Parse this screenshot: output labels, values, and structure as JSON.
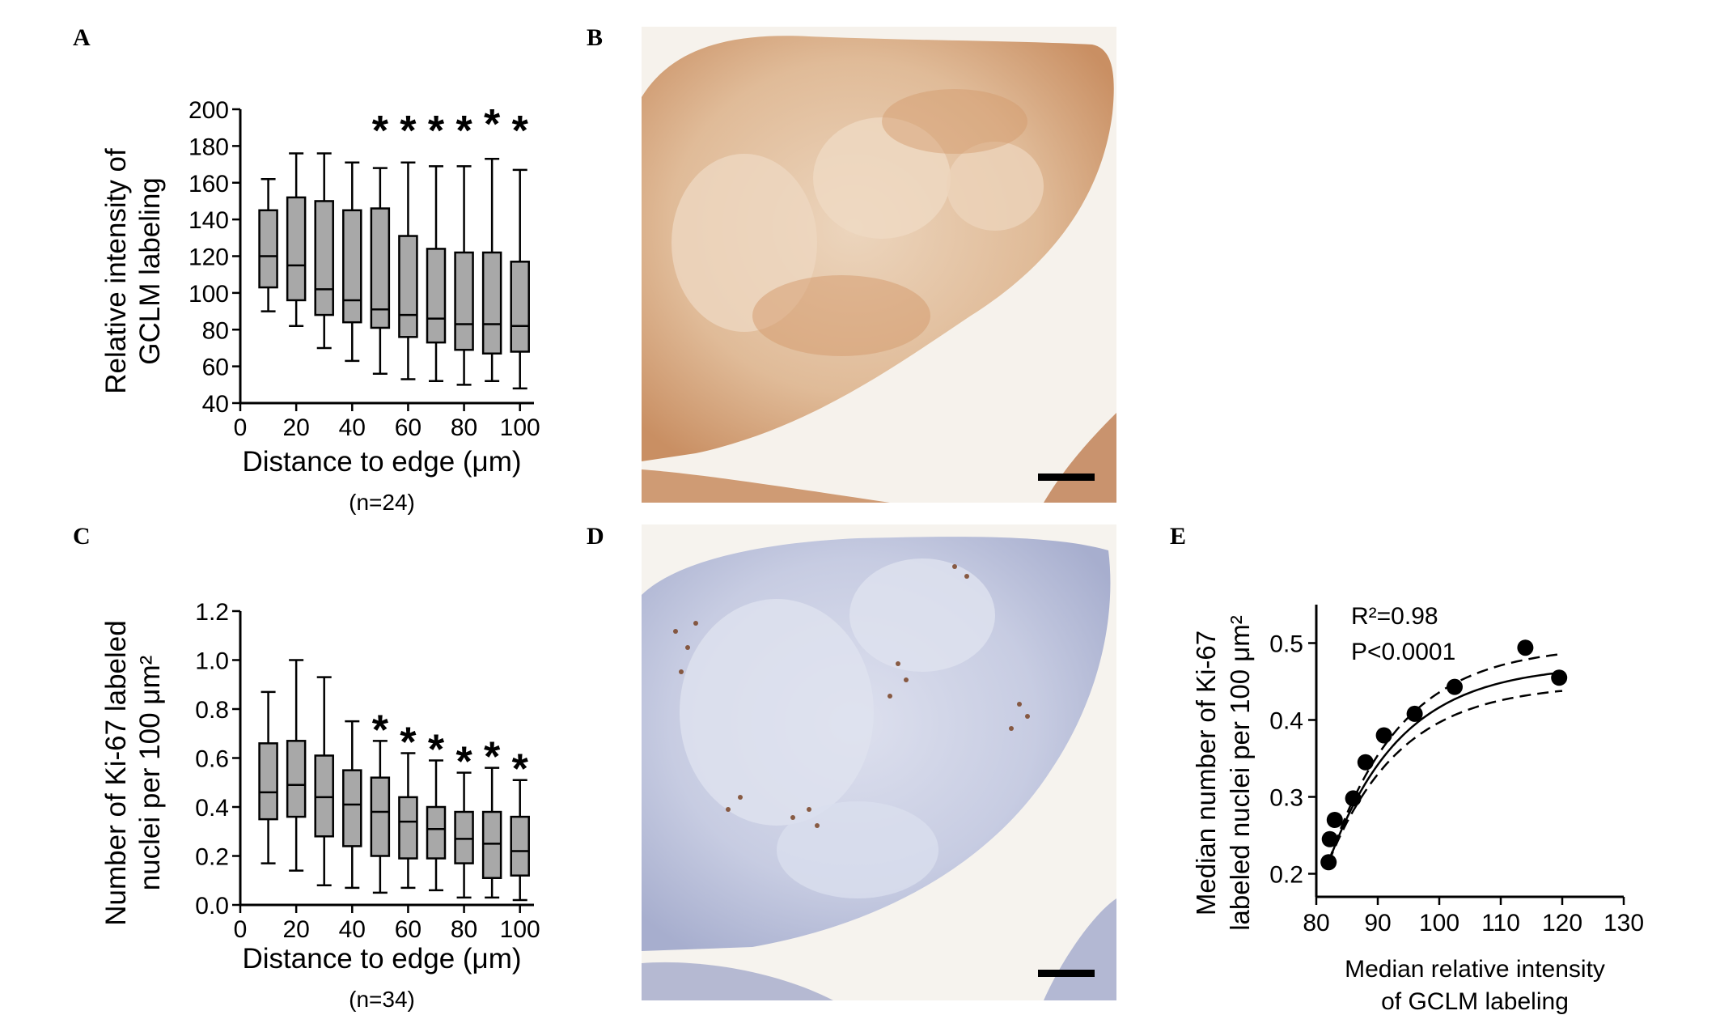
{
  "panels": {
    "A": "A",
    "B": "B",
    "C": "C",
    "D": "D",
    "E": "E"
  },
  "colors": {
    "box_fill": "#a8a8a8",
    "stroke": "#000000",
    "stain_brown": "#c8865a",
    "stain_blue": "#9fa7c8",
    "paper": "#f4efe6"
  },
  "micrographs": [
    {
      "panel": "B",
      "stain": "GCLM immunohistochemistry (brown)"
    },
    {
      "panel": "D",
      "stain": "Ki-67 immunohistochemistry (blue/brown nuclei)"
    }
  ],
  "chart_data": [
    {
      "panel": "A",
      "type": "box",
      "ylabel_lines": [
        "Relative intensity of",
        "GCLM labeling"
      ],
      "xlabel": "Distance to edge (μm)",
      "note": "(n=24)",
      "xlim": [
        0,
        105
      ],
      "ylim": [
        40,
        200
      ],
      "xticks": [
        0,
        20,
        40,
        60,
        80,
        100
      ],
      "yticks": [
        40,
        60,
        80,
        100,
        120,
        140,
        160,
        180,
        200
      ],
      "ytick_labels": [
        "40",
        "60",
        "80",
        "100",
        "120",
        "140",
        "160",
        "180",
        "200"
      ],
      "boxes": [
        {
          "x": 10,
          "min": 90,
          "q1": 103,
          "median": 120,
          "q3": 145,
          "max": 162,
          "sig": ""
        },
        {
          "x": 20,
          "min": 82,
          "q1": 96,
          "median": 115,
          "q3": 152,
          "max": 176,
          "sig": ""
        },
        {
          "x": 30,
          "min": 70,
          "q1": 88,
          "median": 102,
          "q3": 150,
          "max": 176,
          "sig": ""
        },
        {
          "x": 40,
          "min": 63,
          "q1": 84,
          "median": 96,
          "q3": 145,
          "max": 171,
          "sig": ""
        },
        {
          "x": 50,
          "min": 56,
          "q1": 81,
          "median": 91,
          "q3": 146,
          "max": 168,
          "sig": "*"
        },
        {
          "x": 60,
          "min": 53,
          "q1": 76,
          "median": 88,
          "q3": 131,
          "max": 171,
          "sig": "*"
        },
        {
          "x": 70,
          "min": 52,
          "q1": 73,
          "median": 86,
          "q3": 124,
          "max": 169,
          "sig": "*"
        },
        {
          "x": 80,
          "min": 50,
          "q1": 69,
          "median": 83,
          "q3": 122,
          "max": 169,
          "sig": "*"
        },
        {
          "x": 90,
          "min": 52,
          "q1": 67,
          "median": 83,
          "q3": 122,
          "max": 173,
          "sig": "*"
        },
        {
          "x": 100,
          "min": 48,
          "q1": 68,
          "median": 82,
          "q3": 117,
          "max": 167,
          "sig": "*"
        }
      ]
    },
    {
      "panel": "C",
      "type": "box",
      "ylabel_lines": [
        "Number of Ki-67 labeled",
        "nuclei per 100 μm²"
      ],
      "xlabel": "Distance to edge (μm)",
      "note": "(n=34)",
      "xlim": [
        0,
        105
      ],
      "ylim": [
        0,
        1.2
      ],
      "xticks": [
        0,
        20,
        40,
        60,
        80,
        100
      ],
      "yticks": [
        0,
        0.2,
        0.4,
        0.6,
        0.8,
        1.0,
        1.2
      ],
      "ytick_labels": [
        "0.0",
        "0.2",
        "0.4",
        "0.6",
        "0.8",
        "1.0",
        "1.2"
      ],
      "boxes": [
        {
          "x": 10,
          "min": 0.17,
          "q1": 0.35,
          "median": 0.46,
          "q3": 0.66,
          "max": 0.87,
          "sig": ""
        },
        {
          "x": 20,
          "min": 0.14,
          "q1": 0.36,
          "median": 0.49,
          "q3": 0.67,
          "max": 1.0,
          "sig": ""
        },
        {
          "x": 30,
          "min": 0.08,
          "q1": 0.28,
          "median": 0.44,
          "q3": 0.61,
          "max": 0.93,
          "sig": ""
        },
        {
          "x": 40,
          "min": 0.07,
          "q1": 0.24,
          "median": 0.41,
          "q3": 0.55,
          "max": 0.75,
          "sig": ""
        },
        {
          "x": 50,
          "min": 0.05,
          "q1": 0.2,
          "median": 0.38,
          "q3": 0.52,
          "max": 0.67,
          "sig": "*"
        },
        {
          "x": 60,
          "min": 0.07,
          "q1": 0.19,
          "median": 0.34,
          "q3": 0.44,
          "max": 0.62,
          "sig": "*"
        },
        {
          "x": 70,
          "min": 0.06,
          "q1": 0.19,
          "median": 0.31,
          "q3": 0.4,
          "max": 0.59,
          "sig": "*"
        },
        {
          "x": 80,
          "min": 0.03,
          "q1": 0.17,
          "median": 0.27,
          "q3": 0.38,
          "max": 0.54,
          "sig": "*"
        },
        {
          "x": 90,
          "min": 0.03,
          "q1": 0.11,
          "median": 0.25,
          "q3": 0.38,
          "max": 0.56,
          "sig": "*"
        },
        {
          "x": 100,
          "min": 0.02,
          "q1": 0.12,
          "median": 0.22,
          "q3": 0.36,
          "max": 0.51,
          "sig": "*"
        }
      ]
    },
    {
      "panel": "E",
      "type": "scatter",
      "ylabel_lines": [
        "Median number of Ki-67",
        "labeled nuclei per 100 μm²"
      ],
      "xlabel_lines": [
        "Median relative intensity",
        "of GCLM labeling"
      ],
      "xlim": [
        80,
        130
      ],
      "ylim": [
        0.17,
        0.55
      ],
      "xticks": [
        80,
        90,
        100,
        110,
        120,
        130
      ],
      "yticks": [
        0.2,
        0.3,
        0.4,
        0.5
      ],
      "ytick_labels": [
        "0.2",
        "0.3",
        "0.4",
        "0.5"
      ],
      "r2_text": "R²=0.98",
      "p_text": "P<0.0001",
      "points": [
        {
          "x": 82,
          "y": 0.215
        },
        {
          "x": 82.2,
          "y": 0.245
        },
        {
          "x": 83,
          "y": 0.27
        },
        {
          "x": 86,
          "y": 0.298
        },
        {
          "x": 88,
          "y": 0.345
        },
        {
          "x": 91,
          "y": 0.38
        },
        {
          "x": 96,
          "y": 0.408
        },
        {
          "x": 102.5,
          "y": 0.443
        },
        {
          "x": 114,
          "y": 0.494
        },
        {
          "x": 119.5,
          "y": 0.455
        }
      ],
      "fit": {
        "upper_x": 82,
        "plateau": 0.472,
        "y0": 0.215,
        "k": 0.085,
        "ci_delta": 0.025
      }
    }
  ]
}
